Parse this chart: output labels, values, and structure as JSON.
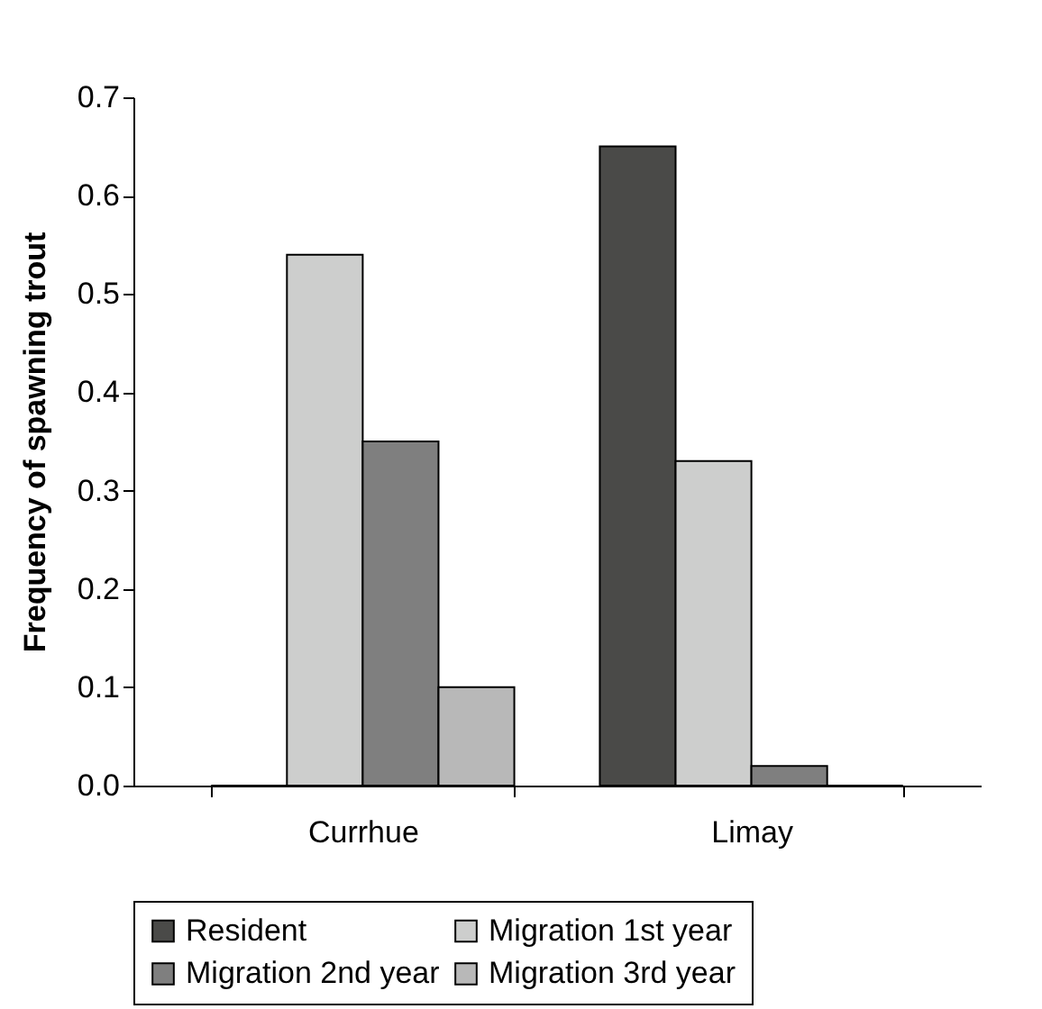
{
  "chart_data": {
    "type": "bar",
    "ylabel": "Frequency of spawning trout",
    "categories": [
      "Currhue",
      "Limay"
    ],
    "series": [
      {
        "name": "Resident",
        "color": "#4a4a48",
        "values": [
          0,
          0.65
        ]
      },
      {
        "name": "Migration 1st year",
        "color": "#cdcecd",
        "values": [
          0.54,
          0.33
        ]
      },
      {
        "name": "Migration 2nd year",
        "color": "#7f7f7f",
        "values": [
          0.35,
          0.02
        ]
      },
      {
        "name": "Migration 3rd year",
        "color": "#b8b8b8",
        "values": [
          0.1,
          0
        ]
      }
    ],
    "ylim": [
      0,
      0.7
    ],
    "yticks": [
      {
        "value": 0,
        "label": "0.0"
      },
      {
        "value": 0.1,
        "label": "0.1"
      },
      {
        "value": 0.2,
        "label": "0.2"
      },
      {
        "value": 0.3,
        "label": "0.3"
      },
      {
        "value": 0.4,
        "label": "0.4"
      },
      {
        "value": 0.5,
        "label": "0.5"
      },
      {
        "value": 0.6,
        "label": "0.6"
      },
      {
        "value": 0.7,
        "label": "0.7"
      }
    ],
    "grid": false,
    "legend": "bottom"
  }
}
